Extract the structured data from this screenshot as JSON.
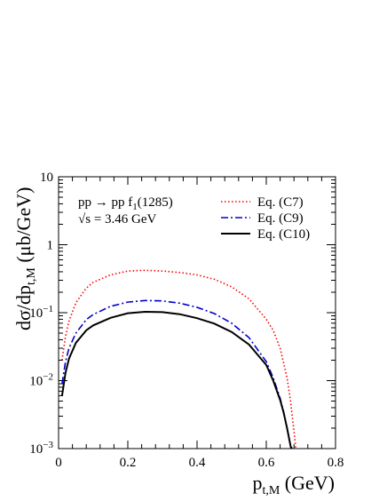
{
  "chart_data": {
    "type": "line",
    "xlabel": {
      "main": "p",
      "sub": "t,M",
      "rest": " (GeV)"
    },
    "ylabel": {
      "pre": "dσ/dp",
      "sub": "t,M",
      "post": " (μb/GeV)"
    },
    "xlim": [
      0,
      0.8
    ],
    "ylim": [
      0.001,
      10
    ],
    "yscale": "log",
    "grid": false,
    "x_ticks": [
      {
        "v": 0,
        "label": "0"
      },
      {
        "v": 0.2,
        "label": "0.2"
      },
      {
        "v": 0.4,
        "label": "0.4"
      },
      {
        "v": 0.6,
        "label": "0.6"
      },
      {
        "v": 0.8,
        "label": "0.8"
      }
    ],
    "y_ticks": [
      {
        "v": 0.001,
        "base": "10",
        "exp": "−3"
      },
      {
        "v": 0.01,
        "base": "10",
        "exp": "−2"
      },
      {
        "v": 0.1,
        "base": "10",
        "exp": "−1"
      },
      {
        "v": 1,
        "base": "1",
        "exp": ""
      },
      {
        "v": 10,
        "base": "10",
        "exp": ""
      }
    ],
    "annotations": {
      "reaction_pre": "pp → pp f",
      "reaction_sub": "1",
      "reaction_post": "(1285)",
      "energy_sym": "√s",
      "energy_val": " = 3.46 GeV"
    },
    "legend_position": "top-right",
    "series": [
      {
        "name": "Eq. (C7)",
        "color": "#ff0000",
        "style": "dotted",
        "x": [
          0.01,
          0.02,
          0.03,
          0.05,
          0.08,
          0.1,
          0.15,
          0.2,
          0.25,
          0.3,
          0.35,
          0.4,
          0.45,
          0.5,
          0.55,
          0.6,
          0.62,
          0.64,
          0.66,
          0.67,
          0.68,
          0.685
        ],
        "y": [
          0.02,
          0.045,
          0.075,
          0.14,
          0.23,
          0.28,
          0.36,
          0.41,
          0.42,
          0.41,
          0.39,
          0.36,
          0.31,
          0.24,
          0.16,
          0.08,
          0.055,
          0.03,
          0.011,
          0.005,
          0.0018,
          0.001
        ]
      },
      {
        "name": "Eq. (C9)",
        "color": "#0000cc",
        "style": "dashdot",
        "x": [
          0.01,
          0.02,
          0.03,
          0.05,
          0.08,
          0.1,
          0.15,
          0.2,
          0.25,
          0.3,
          0.35,
          0.4,
          0.45,
          0.5,
          0.55,
          0.6,
          0.62,
          0.64,
          0.65,
          0.66,
          0.67,
          0.675
        ],
        "y": [
          0.009,
          0.019,
          0.03,
          0.05,
          0.079,
          0.094,
          0.124,
          0.143,
          0.151,
          0.149,
          0.138,
          0.12,
          0.097,
          0.07,
          0.043,
          0.019,
          0.011,
          0.0055,
          0.0035,
          0.002,
          0.0011,
          0.001
        ]
      },
      {
        "name": "Eq. (C10)",
        "color": "#000000",
        "style": "solid",
        "x": [
          0.01,
          0.02,
          0.03,
          0.05,
          0.08,
          0.1,
          0.15,
          0.2,
          0.25,
          0.3,
          0.35,
          0.4,
          0.45,
          0.5,
          0.55,
          0.6,
          0.62,
          0.64,
          0.65,
          0.66,
          0.67,
          0.672
        ],
        "y": [
          0.006,
          0.013,
          0.021,
          0.036,
          0.055,
          0.065,
          0.084,
          0.098,
          0.103,
          0.102,
          0.095,
          0.083,
          0.069,
          0.052,
          0.034,
          0.017,
          0.01,
          0.0052,
          0.0034,
          0.002,
          0.0011,
          0.001
        ]
      }
    ]
  }
}
